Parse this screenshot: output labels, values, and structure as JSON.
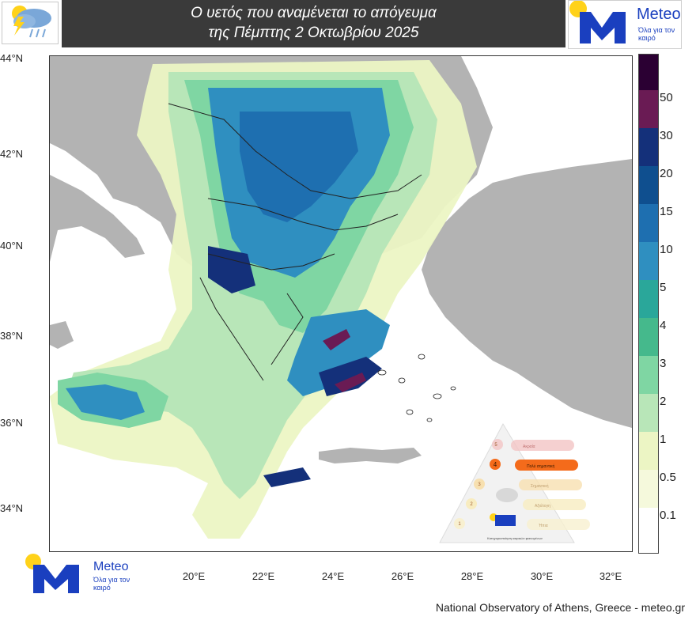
{
  "header": {
    "title_line1": "Ο υετός που αναμένεται το απόγευμα",
    "title_line2": "της Πέμπτης 2 Οκτωβρίου 2025"
  },
  "brand": {
    "name": "Meteo",
    "tagline": "Όλα για τον καιρό"
  },
  "map": {
    "lat_labels": [
      "44°N",
      "42°N",
      "40°N",
      "38°N",
      "36°N",
      "34°N"
    ],
    "lon_labels": [
      "20°E",
      "22°E",
      "24°E",
      "26°E",
      "28°E",
      "30°E",
      "32°E"
    ]
  },
  "legend": {
    "labels": [
      "50",
      "30",
      "20",
      "15",
      "10",
      "5",
      "4",
      "3",
      "2",
      "1",
      "0.5",
      "0.1"
    ],
    "colors": [
      "#2b0033",
      "#6a1b54",
      "#14307a",
      "#0f4f8f",
      "#1e6fb0",
      "#2f8fc0",
      "#2aa79a",
      "#45b98c",
      "#7fd6a3",
      "#b8e6b8",
      "#ecf5c4",
      "#ffffff"
    ]
  },
  "scale_card": {
    "levels": [
      "5",
      "4",
      "3",
      "2",
      "1"
    ],
    "descriptions": [
      "Ακραία",
      "Πολύ σημαντική",
      "Σημαντική",
      "Αξιόλογη",
      "Ήπια"
    ],
    "footer": "Κατηγοριοποίηση καιρικών φαινομένων"
  },
  "credit": "National Observatory of Athens, Greece - meteo.gr",
  "colors": {
    "header_bg": "#3a3a3a",
    "land": "#b3b3b3",
    "sea": "#ffffff",
    "brand_blue": "#1a3fbf",
    "sun": "#ffd21a"
  }
}
